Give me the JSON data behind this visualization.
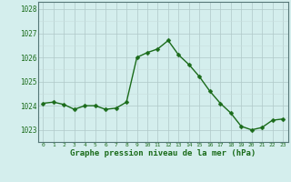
{
  "x": [
    0,
    1,
    2,
    3,
    4,
    5,
    6,
    7,
    8,
    9,
    10,
    11,
    12,
    13,
    14,
    15,
    16,
    17,
    18,
    19,
    20,
    21,
    22,
    23
  ],
  "y": [
    1024.1,
    1024.15,
    1024.05,
    1023.85,
    1024.0,
    1024.0,
    1023.85,
    1023.9,
    1024.15,
    1026.0,
    1026.2,
    1026.35,
    1026.7,
    1026.1,
    1025.7,
    1025.2,
    1024.6,
    1024.1,
    1023.7,
    1023.15,
    1023.0,
    1023.1,
    1023.4,
    1023.45
  ],
  "line_color": "#1a6b1a",
  "marker_color": "#1a6b1a",
  "bg_color": "#d4eeed",
  "grid_color_major": "#b0c8c8",
  "grid_color_minor": "#c8dede",
  "xlabel": "Graphe pression niveau de la mer (hPa)",
  "xlabel_color": "#1a6b1a",
  "tick_color": "#1a6b1a",
  "ylim": [
    1022.5,
    1028.3
  ],
  "yticks": [
    1023,
    1024,
    1025,
    1026,
    1027,
    1028
  ],
  "ytick_labels": [
    "1023",
    "1024",
    "1025",
    "1026",
    "1027",
    "1028"
  ],
  "xticks": [
    0,
    1,
    2,
    3,
    4,
    5,
    6,
    7,
    8,
    9,
    10,
    11,
    12,
    13,
    14,
    15,
    16,
    17,
    18,
    19,
    20,
    21,
    22,
    23
  ],
  "marker_size": 2.5,
  "line_width": 1.0
}
